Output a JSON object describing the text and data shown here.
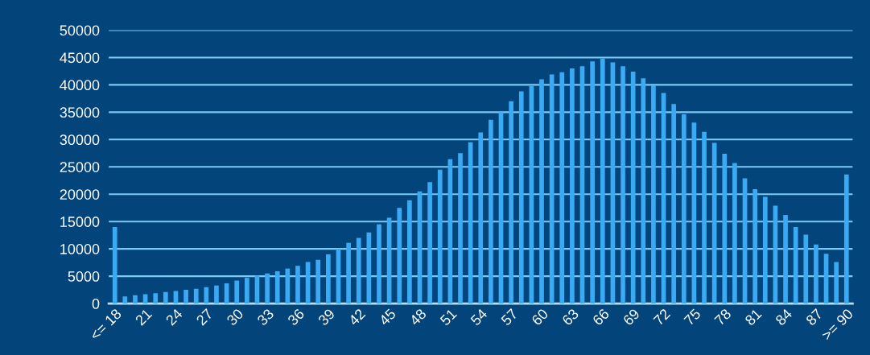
{
  "chart_data": {
    "type": "bar",
    "categories": [
      "<= 18",
      null,
      null,
      "21",
      null,
      null,
      "24",
      null,
      null,
      "27",
      null,
      null,
      "30",
      null,
      null,
      "33",
      null,
      null,
      "36",
      null,
      null,
      "39",
      null,
      null,
      "42",
      null,
      null,
      "45",
      null,
      null,
      "48",
      null,
      null,
      "51",
      null,
      null,
      "54",
      null,
      null,
      "57",
      null,
      null,
      "60",
      null,
      null,
      "63",
      null,
      null,
      "66",
      null,
      null,
      "69",
      null,
      null,
      "72",
      null,
      null,
      "75",
      null,
      null,
      "78",
      null,
      null,
      "81",
      null,
      null,
      "84",
      null,
      null,
      "87",
      null,
      null,
      ">= 90"
    ],
    "values": [
      14000,
      1300,
      1500,
      1700,
      1900,
      2100,
      2300,
      2500,
      2700,
      3000,
      3300,
      3700,
      4200,
      4700,
      5100,
      5500,
      5900,
      6400,
      6900,
      7600,
      8000,
      9000,
      10000,
      11100,
      12000,
      13000,
      14500,
      15700,
      17500,
      18900,
      20500,
      22200,
      24500,
      26400,
      27500,
      29500,
      31300,
      33600,
      35000,
      37000,
      38800,
      39800,
      41000,
      41900,
      42300,
      43000,
      43400,
      44300,
      44800,
      44100,
      43400,
      42400,
      41200,
      39900,
      38500,
      36500,
      34600,
      33100,
      31400,
      29400,
      27400,
      25700,
      22900,
      20900,
      19500,
      17900,
      16200,
      14000,
      12600,
      10800,
      9100,
      7600,
      23600
    ],
    "color": "#3aaaf5",
    "ylim": [
      0,
      50000
    ],
    "yticks": [
      0,
      5000,
      10000,
      15000,
      20000,
      25000,
      30000,
      35000,
      40000,
      45000,
      50000
    ],
    "grid": "y"
  }
}
